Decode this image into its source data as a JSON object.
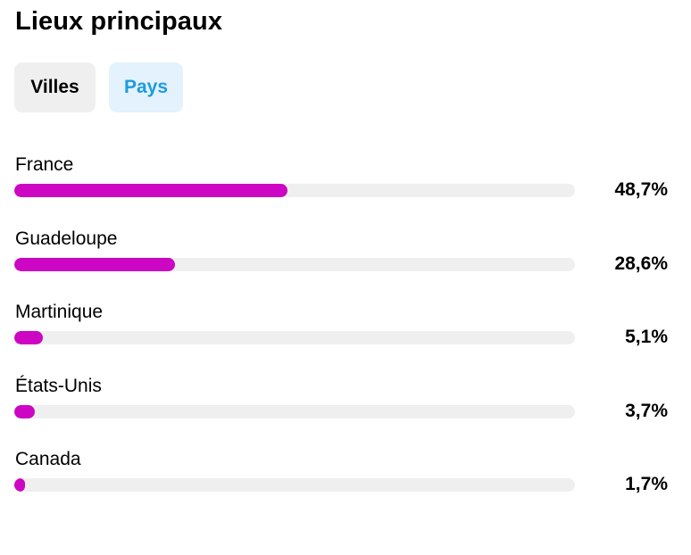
{
  "title": "Lieux principaux",
  "tabs": [
    {
      "label": "Villes",
      "active": false
    },
    {
      "label": "Pays",
      "active": true
    }
  ],
  "colors": {
    "bar_fill": "#cc06c2",
    "bar_track": "#efefef",
    "active_tab_text": "#1d9be0",
    "active_tab_bg": "#e3f2fc",
    "inactive_tab_bg": "#efefef"
  },
  "locations": [
    {
      "name": "France",
      "percent_label": "48,7%",
      "value": 48.7
    },
    {
      "name": "Guadeloupe",
      "percent_label": "28,6%",
      "value": 28.6
    },
    {
      "name": "Martinique",
      "percent_label": "5,1%",
      "value": 5.1
    },
    {
      "name": "États-Unis",
      "percent_label": "3,7%",
      "value": 3.7
    },
    {
      "name": "Canada",
      "percent_label": "1,7%",
      "value": 1.7
    }
  ]
}
